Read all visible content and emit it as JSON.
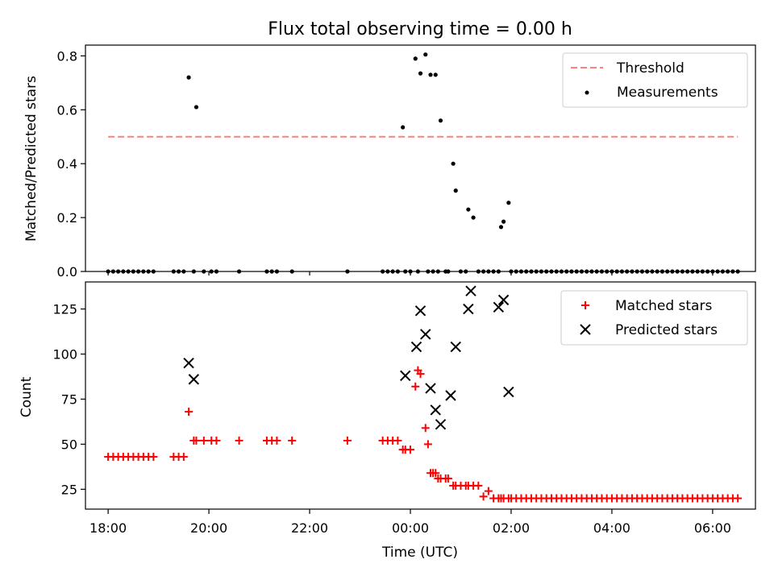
{
  "chart_data": [
    {
      "type": "scatter",
      "title": "Flux total observing time = 0.00 h",
      "xlabel": "",
      "ylabel": "Matched/Predicted stars",
      "xlim": [
        -6.45,
        6.85
      ],
      "ylim": [
        0,
        0.84
      ],
      "yticks": [
        0.0,
        0.2,
        0.4,
        0.6,
        0.8
      ],
      "ytick_labels": [
        "0.0",
        "0.2",
        "0.4",
        "0.6",
        "0.8"
      ],
      "legend_position": "top-right",
      "threshold": {
        "name": "Threshold",
        "y": 0.5,
        "x": [
          -6.0,
          6.5
        ],
        "color": "#ff7f7f"
      },
      "series": [
        {
          "name": "Measurements",
          "color": "#000000",
          "x": [
            -6.0,
            -5.9,
            -5.8,
            -5.7,
            -5.6,
            -5.5,
            -5.4,
            -5.3,
            -5.2,
            -5.1,
            -4.7,
            -4.6,
            -4.5,
            -4.4,
            -4.3,
            -4.25,
            -4.1,
            -3.95,
            -3.85,
            -3.4,
            -2.85,
            -2.75,
            -2.65,
            -2.35,
            -1.25,
            -0.55,
            -0.45,
            -0.35,
            -0.25,
            -0.15,
            -0.1,
            0.0,
            0.1,
            0.15,
            0.2,
            0.3,
            0.35,
            0.4,
            0.45,
            0.5,
            0.55,
            0.6,
            0.7,
            0.75,
            0.85,
            0.9,
            1.0,
            1.1,
            1.15,
            1.25,
            1.35,
            1.45,
            1.55,
            1.65,
            1.75,
            1.8,
            1.85,
            1.95,
            2.0,
            2.1,
            2.2,
            2.3,
            2.4,
            2.5,
            2.6,
            2.7,
            2.8,
            2.9,
            3.0,
            3.1,
            3.2,
            3.3,
            3.4,
            3.5,
            3.6,
            3.7,
            3.8,
            3.9,
            4.0,
            4.1,
            4.2,
            4.3,
            4.4,
            4.5,
            4.6,
            4.7,
            4.8,
            4.9,
            5.0,
            5.1,
            5.2,
            5.3,
            5.4,
            5.5,
            5.6,
            5.7,
            5.8,
            5.9,
            6.0,
            6.1,
            6.2,
            6.3,
            6.4,
            6.5
          ],
          "y": [
            0,
            0,
            0,
            0,
            0,
            0,
            0,
            0,
            0,
            0,
            0,
            0,
            0,
            0.72,
            0,
            0.61,
            0,
            0,
            0,
            0,
            0,
            0,
            0,
            0,
            0,
            0,
            0,
            0,
            0,
            0.535,
            0,
            0,
            0.79,
            0,
            0.735,
            0.805,
            0,
            0.73,
            0,
            0.73,
            0,
            0.56,
            0,
            0,
            0.4,
            0.3,
            0,
            0,
            0.23,
            0.2,
            0,
            0,
            0,
            0,
            0,
            0.165,
            0.185,
            0.255,
            0,
            0,
            0,
            0,
            0,
            0,
            0,
            0,
            0,
            0,
            0,
            0,
            0,
            0,
            0,
            0,
            0,
            0,
            0,
            0,
            0,
            0,
            0,
            0,
            0,
            0,
            0,
            0,
            0,
            0,
            0,
            0,
            0,
            0,
            0,
            0,
            0,
            0,
            0,
            0,
            0,
            0,
            0,
            0,
            0,
            0
          ]
        }
      ]
    },
    {
      "type": "scatter",
      "title": "",
      "xlabel": "Time (UTC)",
      "ylabel": "Count",
      "xlim": [
        -6.45,
        6.85
      ],
      "ylim": [
        14,
        140
      ],
      "yticks": [
        25,
        50,
        75,
        100,
        125
      ],
      "ytick_labels": [
        "25",
        "50",
        "75",
        "100",
        "125"
      ],
      "xticks": [
        -6,
        -4,
        -2,
        0,
        2,
        4,
        6
      ],
      "xtick_labels": [
        "18:00",
        "20:00",
        "22:00",
        "00:00",
        "02:00",
        "04:00",
        "06:00"
      ],
      "legend_position": "top-right",
      "series": [
        {
          "name": "Matched stars",
          "marker": "plus",
          "color": "#ff0000",
          "x": [
            -6.0,
            -5.9,
            -5.8,
            -5.7,
            -5.6,
            -5.5,
            -5.4,
            -5.3,
            -5.2,
            -5.1,
            -4.7,
            -4.6,
            -4.5,
            -4.4,
            -4.3,
            -4.25,
            -4.1,
            -3.95,
            -3.85,
            -3.4,
            -2.85,
            -2.75,
            -2.65,
            -2.35,
            -1.25,
            -0.55,
            -0.45,
            -0.35,
            -0.25,
            -0.15,
            -0.1,
            0.0,
            0.1,
            0.15,
            0.2,
            0.3,
            0.35,
            0.4,
            0.45,
            0.5,
            0.55,
            0.6,
            0.7,
            0.75,
            0.85,
            0.9,
            1.0,
            1.1,
            1.15,
            1.25,
            1.35,
            1.45,
            1.55,
            1.65,
            1.75,
            1.8,
            1.85,
            1.95,
            2.0,
            2.1,
            2.2,
            2.3,
            2.4,
            2.5,
            2.6,
            2.7,
            2.8,
            2.9,
            3.0,
            3.1,
            3.2,
            3.3,
            3.4,
            3.5,
            3.6,
            3.7,
            3.8,
            3.9,
            4.0,
            4.1,
            4.2,
            4.3,
            4.4,
            4.5,
            4.6,
            4.7,
            4.8,
            4.9,
            5.0,
            5.1,
            5.2,
            5.3,
            5.4,
            5.5,
            5.6,
            5.7,
            5.8,
            5.9,
            6.0,
            6.1,
            6.2,
            6.3,
            6.4,
            6.5
          ],
          "y": [
            43,
            43,
            43,
            43,
            43,
            43,
            43,
            43,
            43,
            43,
            43,
            43,
            43,
            68,
            52,
            52,
            52,
            52,
            52,
            52,
            52,
            52,
            52,
            52,
            52,
            52,
            52,
            52,
            52,
            47,
            47,
            47,
            82,
            91,
            89,
            59,
            50,
            34,
            34,
            34,
            31,
            31,
            31,
            31,
            27,
            27,
            27,
            27,
            27,
            27,
            27,
            21,
            24,
            20,
            20,
            20,
            20,
            20,
            20,
            20,
            20,
            20,
            20,
            20,
            20,
            20,
            20,
            20,
            20,
            20,
            20,
            20,
            20,
            20,
            20,
            20,
            20,
            20,
            20,
            20,
            20,
            20,
            20,
            20,
            20,
            20,
            20,
            20,
            20,
            20,
            20,
            20,
            20,
            20,
            20,
            20,
            20,
            20,
            20,
            20,
            20,
            20,
            20,
            20
          ]
        },
        {
          "name": "Predicted stars",
          "marker": "x",
          "color": "#000000",
          "x": [
            -4.4,
            -4.3,
            -0.1,
            0.12,
            0.2,
            0.3,
            0.4,
            0.5,
            0.6,
            0.8,
            0.9,
            1.15,
            1.2,
            1.75,
            1.85,
            1.95
          ],
          "y": [
            95,
            86,
            88,
            104,
            124,
            111,
            81,
            69,
            61,
            77,
            104,
            125,
            135,
            126,
            130,
            79
          ]
        }
      ]
    }
  ]
}
